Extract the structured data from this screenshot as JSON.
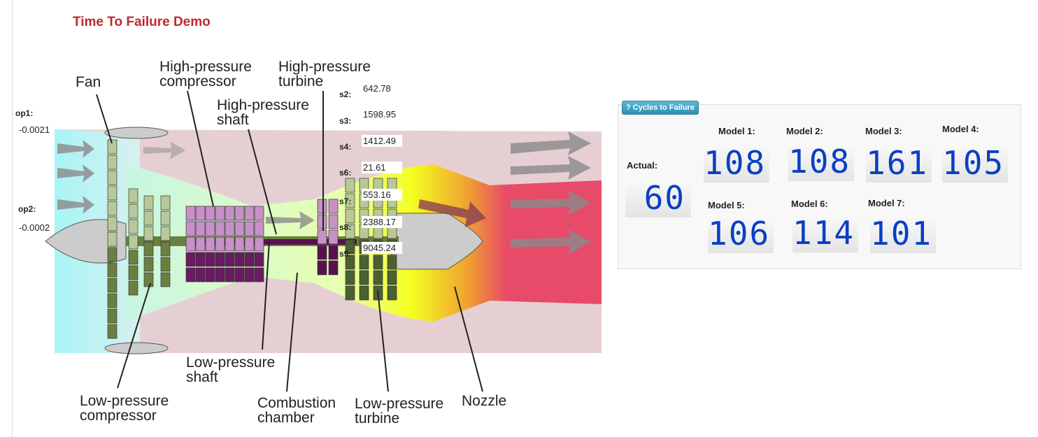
{
  "title": "Time To Failure Demo",
  "operating": {
    "op1_label": "op1:",
    "op1_value": "-0.0021",
    "op2_label": "op2:",
    "op2_value": "-0.0002"
  },
  "sensors": [
    {
      "label": "s2:",
      "value": "642.78"
    },
    {
      "label": "s3:",
      "value": "1598.95"
    },
    {
      "label": "s4:",
      "value": "1412.49"
    },
    {
      "label": "s6:",
      "value": "21.61"
    },
    {
      "label": "s7:",
      "value": "553.16"
    },
    {
      "label": "s8:",
      "value": "2388.17"
    },
    {
      "label": "s9:",
      "value": "9045.24"
    }
  ],
  "diagram_labels": {
    "fan": "Fan",
    "hpc1": "High-pressure",
    "hpc2": "compressor",
    "hpt1": "High-pressure",
    "hpt2": "turbine",
    "hps1": "High-pressure",
    "hps2": "shaft",
    "lps1": "Low-pressure",
    "lps2": "shaft",
    "lpc1": "Low-pressure",
    "lpc2": "compressor",
    "cc1": "Combustion",
    "cc2": "chamber",
    "lpt1": "Low-pressure",
    "lpt2": "turbine",
    "nozzle": "Nozzle"
  },
  "panel": {
    "badge": "? Cycles to Failure",
    "actual_label": "Actual:",
    "actual_value": "60",
    "models": [
      {
        "label": "Model 1:",
        "value": "108"
      },
      {
        "label": "Model 2:",
        "value": "108"
      },
      {
        "label": "Model 3:",
        "value": "161"
      },
      {
        "label": "Model 4:",
        "value": "105"
      },
      {
        "label": "Model 5:",
        "value": "106"
      },
      {
        "label": "Model 6:",
        "value": "114"
      },
      {
        "label": "Model 7:",
        "value": "101"
      }
    ]
  },
  "colors": {
    "title": "#c0282d",
    "digits": "#0a3fc4",
    "badge": "#3aa0c0"
  }
}
